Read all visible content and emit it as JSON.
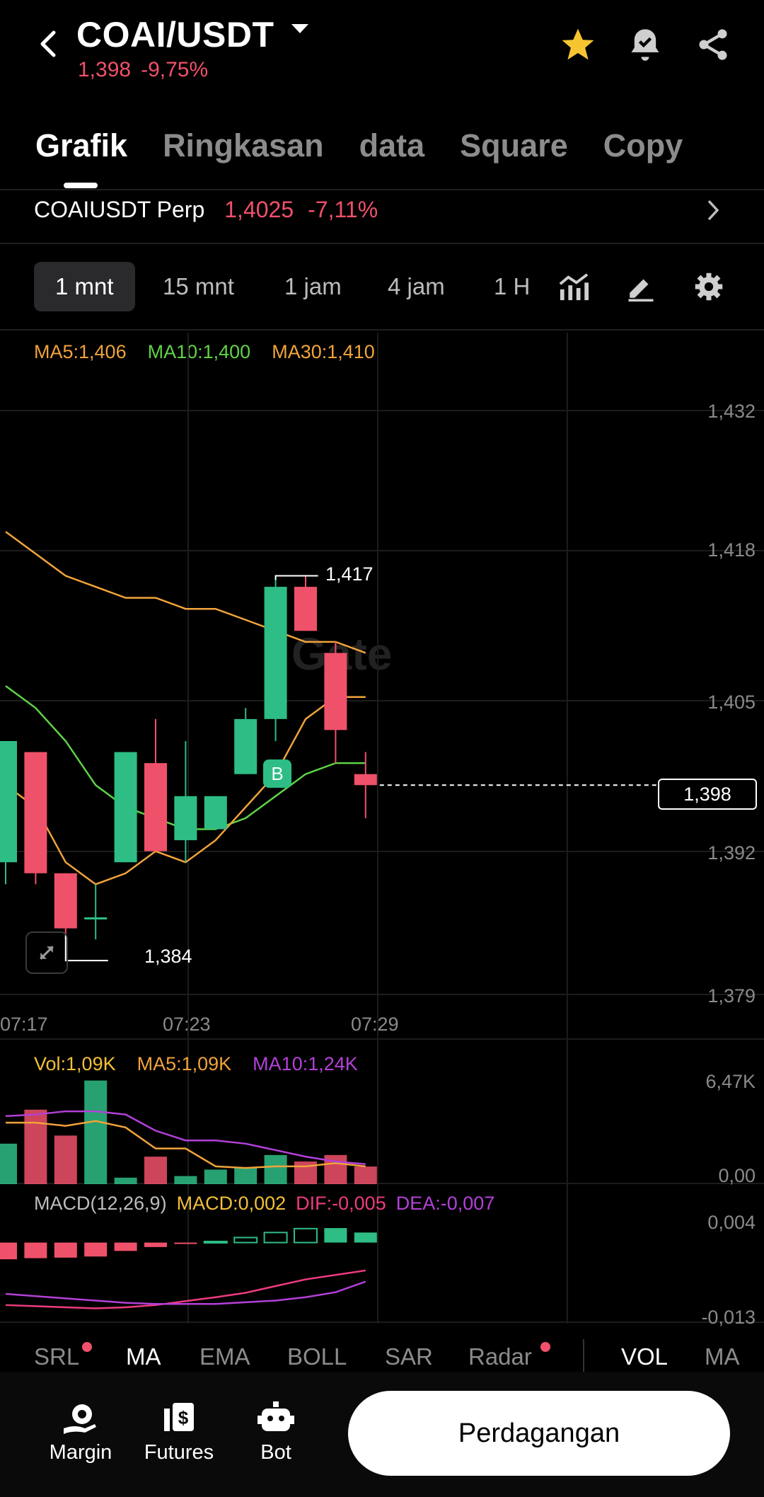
{
  "header": {
    "pair": "COAI/USDT",
    "price": "1,398",
    "change": "-9,75%",
    "icons": [
      "back-arrow-icon",
      "dropdown-caret-icon",
      "star-icon",
      "price-alert-bell-icon",
      "share-icon"
    ]
  },
  "tabs": [
    "Grafik",
    "Ringkasan",
    "data",
    "Square",
    "Copy"
  ],
  "active_tab": "Grafik",
  "perp": {
    "name": "COAIUSDT Perp",
    "price": "1,4025",
    "change": "-7,11%"
  },
  "timeframes": [
    "1 mnt",
    "15 mnt",
    "1 jam",
    "4 jam",
    "1 H"
  ],
  "active_timeframe": "1 mnt",
  "toolbar_icons": [
    "indicator-icon",
    "draw-icon",
    "settings-icon"
  ],
  "ma_legend": {
    "ma5": "MA5:1,406",
    "ma10": "MA10:1,400",
    "ma30": "MA30:1,410"
  },
  "colors": {
    "up": "#2ebd85",
    "down": "#f0516a",
    "ma5": "#f0a23b",
    "ma10": "#5fd346",
    "ma30": "#f2a53a",
    "macd_label": "#f2c037",
    "dif": "#ee3b7f",
    "dea": "#b340d8"
  },
  "chart_data": {
    "type": "candlestick",
    "price_axis": [
      "1,432",
      "1,418",
      "1,405",
      "1,392",
      "1,379"
    ],
    "time_axis": [
      "07:17",
      "07:23",
      "07:29"
    ],
    "ylim": [
      1.379,
      1.432
    ],
    "candles": [
      {
        "o": 1.391,
        "h": 1.402,
        "l": 1.389,
        "c": 1.402
      },
      {
        "o": 1.401,
        "h": 1.401,
        "l": 1.389,
        "c": 1.39
      },
      {
        "o": 1.39,
        "h": 1.39,
        "l": 1.384,
        "c": 1.385
      },
      {
        "o": 1.386,
        "h": 1.389,
        "l": 1.384,
        "c": 1.386
      },
      {
        "o": 1.391,
        "h": 1.401,
        "l": 1.391,
        "c": 1.401
      },
      {
        "o": 1.4,
        "h": 1.404,
        "l": 1.392,
        "c": 1.392
      },
      {
        "o": 1.393,
        "h": 1.402,
        "l": 1.391,
        "c": 1.397
      },
      {
        "o": 1.394,
        "h": 1.397,
        "l": 1.394,
        "c": 1.397
      },
      {
        "o": 1.399,
        "h": 1.405,
        "l": 1.399,
        "c": 1.404
      },
      {
        "o": 1.404,
        "h": 1.417,
        "l": 1.402,
        "c": 1.416
      },
      {
        "o": 1.416,
        "h": 1.417,
        "l": 1.412,
        "c": 1.412
      },
      {
        "o": 1.41,
        "h": 1.411,
        "l": 1.4,
        "c": 1.403
      },
      {
        "o": 1.399,
        "h": 1.401,
        "l": 1.395,
        "c": 1.398
      }
    ],
    "ma5": [
      1.398,
      1.396,
      1.391,
      1.389,
      1.39,
      1.392,
      1.391,
      1.393,
      1.396,
      1.399,
      1.404,
      1.406,
      1.406
    ],
    "ma10": [
      1.407,
      1.405,
      1.402,
      1.398,
      1.396,
      1.395,
      1.394,
      1.394,
      1.395,
      1.397,
      1.399,
      1.4,
      1.4
    ],
    "ma30": [
      1.421,
      1.419,
      1.417,
      1.416,
      1.415,
      1.415,
      1.414,
      1.414,
      1.413,
      1.412,
      1.411,
      1.411,
      1.41
    ],
    "high_label": "1,417",
    "low_label": "1,384",
    "current_price": "1,398",
    "buy_marker": "B",
    "volume": {
      "legend": {
        "vol": "Vol:1,09K",
        "ma5": "MA5:1,09K",
        "ma10": "MA10:1,24K"
      },
      "axis": [
        "6,47K",
        "0,00"
      ],
      "ylim": [
        0,
        6.47
      ],
      "values": [
        2.5,
        4.6,
        3.0,
        6.4,
        0.4,
        1.7,
        0.5,
        0.9,
        1.0,
        1.8,
        1.4,
        1.8,
        1.09
      ],
      "ma5": [
        3.8,
        3.8,
        3.6,
        3.9,
        3.5,
        2.2,
        2.2,
        1.1,
        1.0,
        1.1,
        1.1,
        1.3,
        1.1
      ],
      "ma10": [
        4.2,
        4.3,
        4.5,
        4.5,
        4.3,
        3.3,
        2.7,
        2.7,
        2.5,
        2.1,
        1.7,
        1.4,
        1.24
      ]
    },
    "macd": {
      "legend": {
        "params": "MACD(12,26,9)",
        "macd": "MACD:0,002",
        "dif": "DIF:-0,005",
        "dea": "DEA:-0,007"
      },
      "axis": [
        "0,004",
        "-0,013"
      ],
      "ylim": [
        -0.013,
        0.004
      ],
      "hist": [
        -0.003,
        -0.0028,
        -0.0027,
        -0.0025,
        -0.0015,
        -0.0008,
        -0.0002,
        0.0002,
        0.0009,
        0.0018,
        0.0025,
        0.0026,
        0.0018
      ],
      "dif": [
        -0.0112,
        -0.0114,
        -0.0116,
        -0.0118,
        -0.0116,
        -0.0112,
        -0.0105,
        -0.0098,
        -0.009,
        -0.0078,
        -0.0066,
        -0.0058,
        -0.005
      ],
      "dea": [
        -0.0092,
        -0.0096,
        -0.01,
        -0.0104,
        -0.0108,
        -0.011,
        -0.011,
        -0.011,
        -0.0107,
        -0.0104,
        -0.0098,
        -0.0089,
        -0.007
      ]
    }
  },
  "indicator_tabs": [
    "SRL",
    "MA",
    "EMA",
    "BOLL",
    "SAR",
    "Radar",
    "VOL",
    "MA"
  ],
  "bottom_nav": [
    {
      "label": "Margin",
      "icon": "margin-icon"
    },
    {
      "label": "Futures",
      "icon": "futures-icon"
    },
    {
      "label": "Bot",
      "icon": "bot-icon"
    }
  ],
  "trade_button": "Perdagangan",
  "watermark": "Gate"
}
